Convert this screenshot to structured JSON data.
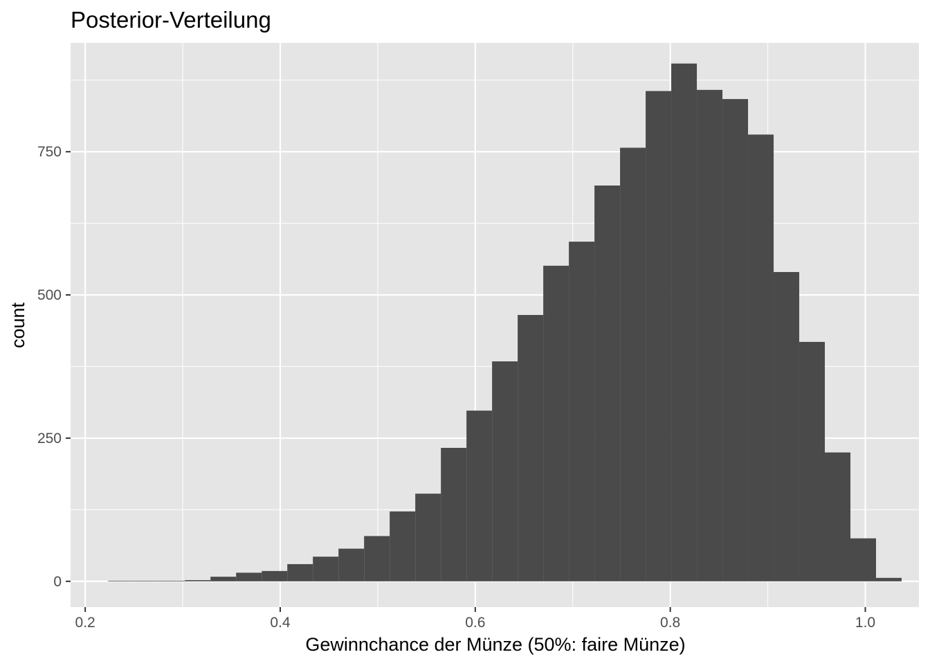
{
  "chart_data": {
    "type": "bar",
    "title": "Posterior-Verteilung",
    "xlabel": "Gewinnchance der Münze (50%: faire Münze)",
    "ylabel": "count",
    "xlim": [
      0.185,
      1.055
    ],
    "ylim": [
      -45,
      940
    ],
    "x_ticks": [
      0.2,
      0.4,
      0.6,
      0.8,
      1.0
    ],
    "x_tick_labels": [
      "0.2",
      "0.4",
      "0.6",
      "0.8",
      "1.0"
    ],
    "y_ticks": [
      0,
      250,
      500,
      750
    ],
    "y_tick_labels": [
      "0",
      "250",
      "500",
      "750"
    ],
    "bin_width": 0.02625,
    "bin_start": 0.2235,
    "values": [
      1,
      1,
      1,
      2,
      8,
      15,
      18,
      30,
      43,
      57,
      79,
      122,
      153,
      233,
      298,
      384,
      465,
      551,
      593,
      691,
      757,
      856,
      904,
      858,
      842,
      780,
      540,
      418,
      225,
      75,
      6
    ],
    "grid": true,
    "legend": "none",
    "colors": {
      "bar": "#4a4a4a",
      "panel": "#e5e5e5",
      "grid": "#ffffff",
      "axis_text": "#4d4d4d",
      "tick": "#333333"
    }
  }
}
